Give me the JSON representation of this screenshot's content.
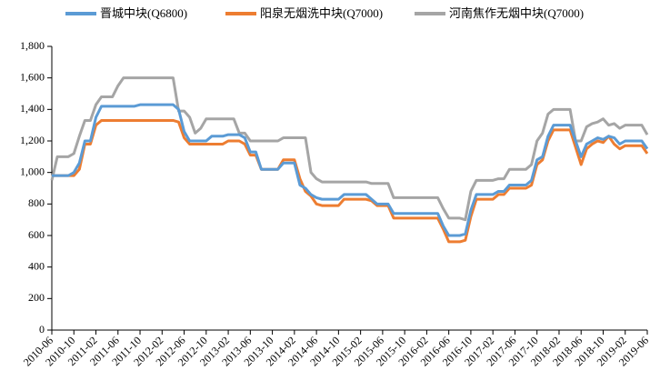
{
  "chart_data": {
    "type": "line",
    "categories": [
      "2010-06",
      null,
      null,
      null,
      "2010-10",
      null,
      null,
      null,
      "2011-02",
      null,
      null,
      null,
      "2011-06",
      null,
      null,
      null,
      "2011-10",
      null,
      null,
      null,
      "2012-02",
      null,
      null,
      null,
      "2012-06",
      null,
      null,
      null,
      "2012-10",
      null,
      null,
      null,
      "2013-02",
      null,
      null,
      null,
      "2013-06",
      null,
      null,
      null,
      "2013-10",
      null,
      null,
      null,
      "2014-02",
      null,
      null,
      null,
      "2014-06",
      null,
      null,
      null,
      "2014-10",
      null,
      null,
      null,
      "2015-02",
      null,
      null,
      null,
      "2015-06",
      null,
      null,
      null,
      "2015-10",
      null,
      null,
      null,
      "2016-02",
      null,
      null,
      null,
      "2016-06",
      null,
      null,
      null,
      "2016-10",
      null,
      null,
      null,
      "2017-02",
      null,
      null,
      null,
      "2017-06",
      null,
      null,
      null,
      "2017-10",
      null,
      null,
      null,
      "2018-02",
      null,
      null,
      null,
      "2018-06",
      null,
      null,
      null,
      "2018-10",
      null,
      null,
      null,
      "2019-02",
      null,
      null,
      null,
      "2019-06"
    ],
    "series": [
      {
        "name": "晋城中块(Q6800)",
        "color": "#5b9bd5",
        "values": [
          980,
          980,
          980,
          980,
          1000,
          1060,
          1200,
          1200,
          1350,
          1420,
          1420,
          1420,
          1420,
          1420,
          1420,
          1420,
          1430,
          1430,
          1430,
          1430,
          1430,
          1430,
          1430,
          1400,
          1260,
          1200,
          1200,
          1200,
          1200,
          1230,
          1230,
          1230,
          1240,
          1240,
          1240,
          1220,
          1130,
          1130,
          1020,
          1020,
          1020,
          1020,
          1060,
          1060,
          1060,
          920,
          900,
          860,
          840,
          830,
          830,
          830,
          830,
          860,
          860,
          860,
          860,
          860,
          830,
          800,
          800,
          800,
          740,
          740,
          740,
          740,
          740,
          740,
          740,
          740,
          740,
          660,
          600,
          600,
          600,
          610,
          760,
          860,
          860,
          860,
          860,
          880,
          880,
          920,
          920,
          920,
          920,
          950,
          1080,
          1100,
          1230,
          1300,
          1300,
          1300,
          1300,
          1200,
          1100,
          1180,
          1200,
          1220,
          1210,
          1230,
          1220,
          1180,
          1200,
          1200,
          1200,
          1200,
          1150
        ]
      },
      {
        "name": "阳泉无烟洗中块(Q7000)",
        "color": "#ed7d31",
        "values": [
          980,
          980,
          980,
          980,
          980,
          1020,
          1180,
          1180,
          1300,
          1330,
          1330,
          1330,
          1330,
          1330,
          1330,
          1330,
          1330,
          1330,
          1330,
          1330,
          1330,
          1330,
          1330,
          1320,
          1220,
          1180,
          1180,
          1180,
          1180,
          1180,
          1180,
          1180,
          1200,
          1200,
          1200,
          1180,
          1110,
          1110,
          1020,
          1020,
          1020,
          1020,
          1080,
          1080,
          1080,
          960,
          880,
          850,
          800,
          790,
          790,
          790,
          790,
          830,
          830,
          830,
          830,
          830,
          820,
          790,
          790,
          790,
          710,
          710,
          710,
          710,
          710,
          710,
          710,
          710,
          710,
          640,
          560,
          560,
          560,
          570,
          720,
          830,
          830,
          830,
          830,
          860,
          860,
          900,
          900,
          900,
          900,
          920,
          1050,
          1080,
          1200,
          1270,
          1270,
          1270,
          1270,
          1160,
          1050,
          1150,
          1180,
          1200,
          1190,
          1230,
          1180,
          1150,
          1170,
          1170,
          1170,
          1170,
          1120
        ]
      },
      {
        "name": "河南焦作无烟中块(Q7000)",
        "color": "#a5a5a5",
        "values": [
          950,
          1100,
          1100,
          1100,
          1120,
          1230,
          1330,
          1330,
          1430,
          1480,
          1480,
          1480,
          1550,
          1600,
          1600,
          1600,
          1600,
          1600,
          1600,
          1600,
          1600,
          1600,
          1600,
          1390,
          1390,
          1350,
          1250,
          1280,
          1340,
          1340,
          1340,
          1340,
          1340,
          1340,
          1250,
          1250,
          1200,
          1200,
          1200,
          1200,
          1200,
          1200,
          1220,
          1220,
          1220,
          1220,
          1220,
          1000,
          960,
          940,
          940,
          940,
          940,
          940,
          940,
          940,
          940,
          940,
          930,
          930,
          930,
          930,
          840,
          840,
          840,
          840,
          840,
          840,
          840,
          840,
          840,
          770,
          710,
          710,
          710,
          700,
          880,
          950,
          950,
          950,
          950,
          960,
          960,
          1020,
          1020,
          1020,
          1020,
          1050,
          1200,
          1250,
          1370,
          1400,
          1400,
          1400,
          1400,
          1200,
          1200,
          1290,
          1310,
          1320,
          1340,
          1300,
          1310,
          1280,
          1300,
          1300,
          1300,
          1300,
          1240
        ]
      }
    ],
    "ylim": [
      0,
      1800
    ],
    "yticks": [
      0,
      200,
      400,
      600,
      800,
      {
        "value": 1000,
        "label": "1,000"
      },
      {
        "value": 1200,
        "label": "1,200"
      },
      {
        "value": 1400,
        "label": "1,400"
      },
      {
        "value": 1600,
        "label": "1,600"
      },
      {
        "value": 1800,
        "label": "1,800"
      }
    ],
    "grid": false
  }
}
